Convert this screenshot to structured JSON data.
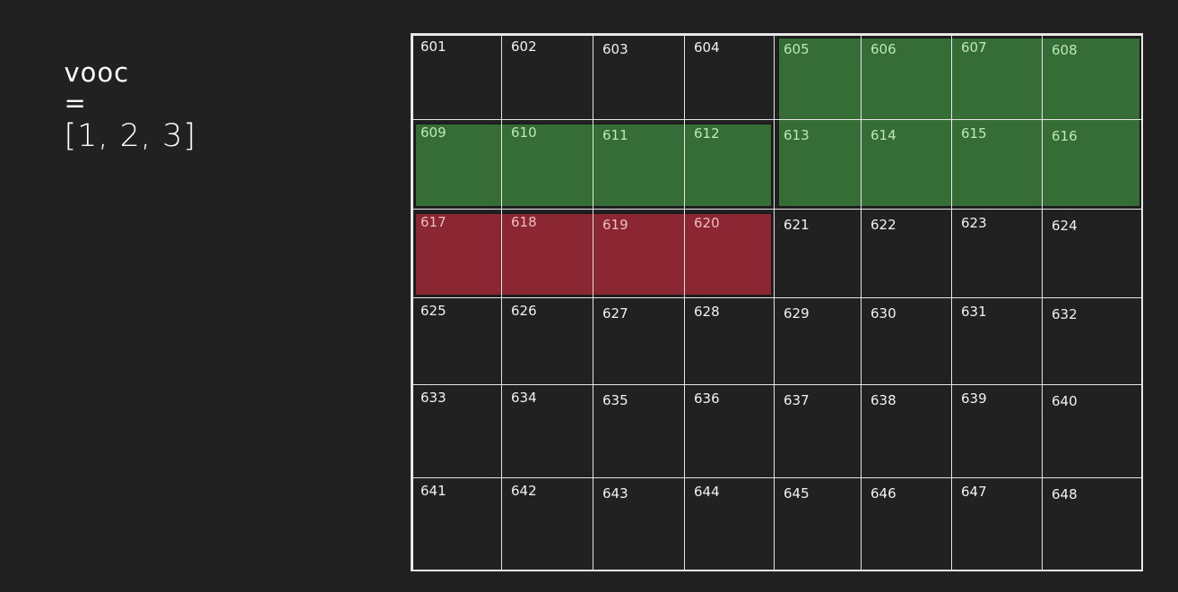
{
  "code": {
    "var_name": "vooc",
    "equals": "=",
    "value_text": "[1, 2, 3]"
  },
  "grid": {
    "rows": 6,
    "cols": 8,
    "cells": [
      "601",
      "602",
      "603",
      "604",
      "605",
      "606",
      "607",
      "608",
      "609",
      "610",
      "611",
      "612",
      "613",
      "614",
      "615",
      "616",
      "617",
      "618",
      "619",
      "620",
      "621",
      "622",
      "623",
      "624",
      "625",
      "626",
      "627",
      "628",
      "629",
      "630",
      "631",
      "632",
      "633",
      "634",
      "635",
      "636",
      "637",
      "638",
      "639",
      "640",
      "641",
      "642",
      "643",
      "644",
      "645",
      "646",
      "647",
      "648"
    ],
    "highlights": [
      {
        "name": "green-block-a",
        "color": "green",
        "cells": [
          "605",
          "606",
          "607",
          "608",
          "613",
          "614",
          "615",
          "616"
        ]
      },
      {
        "name": "green-block-b",
        "color": "green",
        "cells": [
          "609",
          "610",
          "611",
          "612"
        ]
      },
      {
        "name": "red-block",
        "color": "red",
        "cells": [
          "617",
          "618",
          "619",
          "620"
        ]
      }
    ]
  },
  "colors": {
    "background": "#222122",
    "grid_line": "#e6e6e6",
    "green": "#3c823c",
    "red": "#96283a"
  }
}
